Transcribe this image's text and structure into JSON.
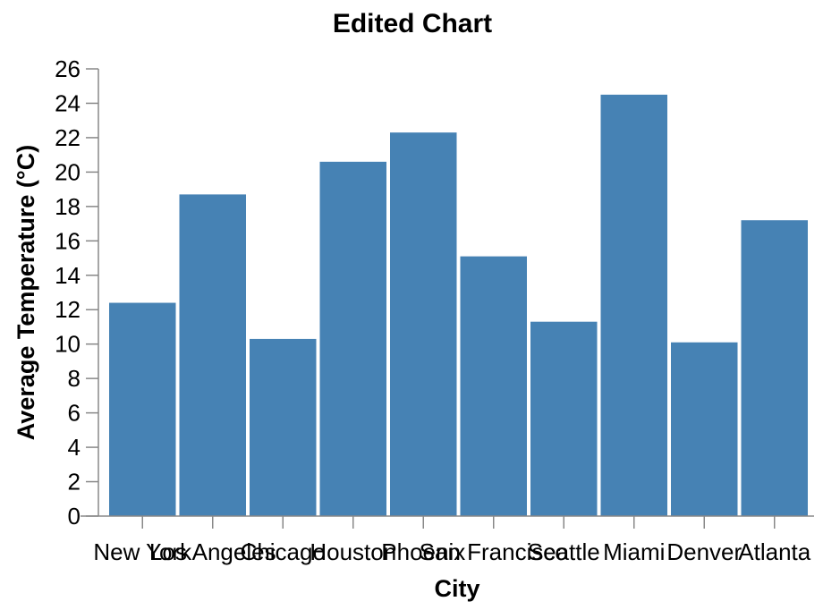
{
  "chart_data": {
    "type": "bar",
    "title": "Edited Chart",
    "xlabel": "City",
    "ylabel": "Average Temperature (°C)",
    "categories": [
      "New York",
      "Los Angeles",
      "Chicago",
      "Houston",
      "Phoenix",
      "San Francisco",
      "Seattle",
      "Miami",
      "Denver",
      "Atlanta"
    ],
    "values": [
      12.4,
      18.7,
      10.3,
      20.6,
      22.3,
      15.1,
      11.3,
      24.5,
      10.1,
      17.2
    ],
    "ylim": [
      0,
      26
    ],
    "yticks": [
      0,
      2,
      4,
      6,
      8,
      10,
      12,
      14,
      16,
      18,
      20,
      22,
      24,
      26
    ],
    "bar_color": "#4682b4",
    "grid": false,
    "legend": "none"
  }
}
